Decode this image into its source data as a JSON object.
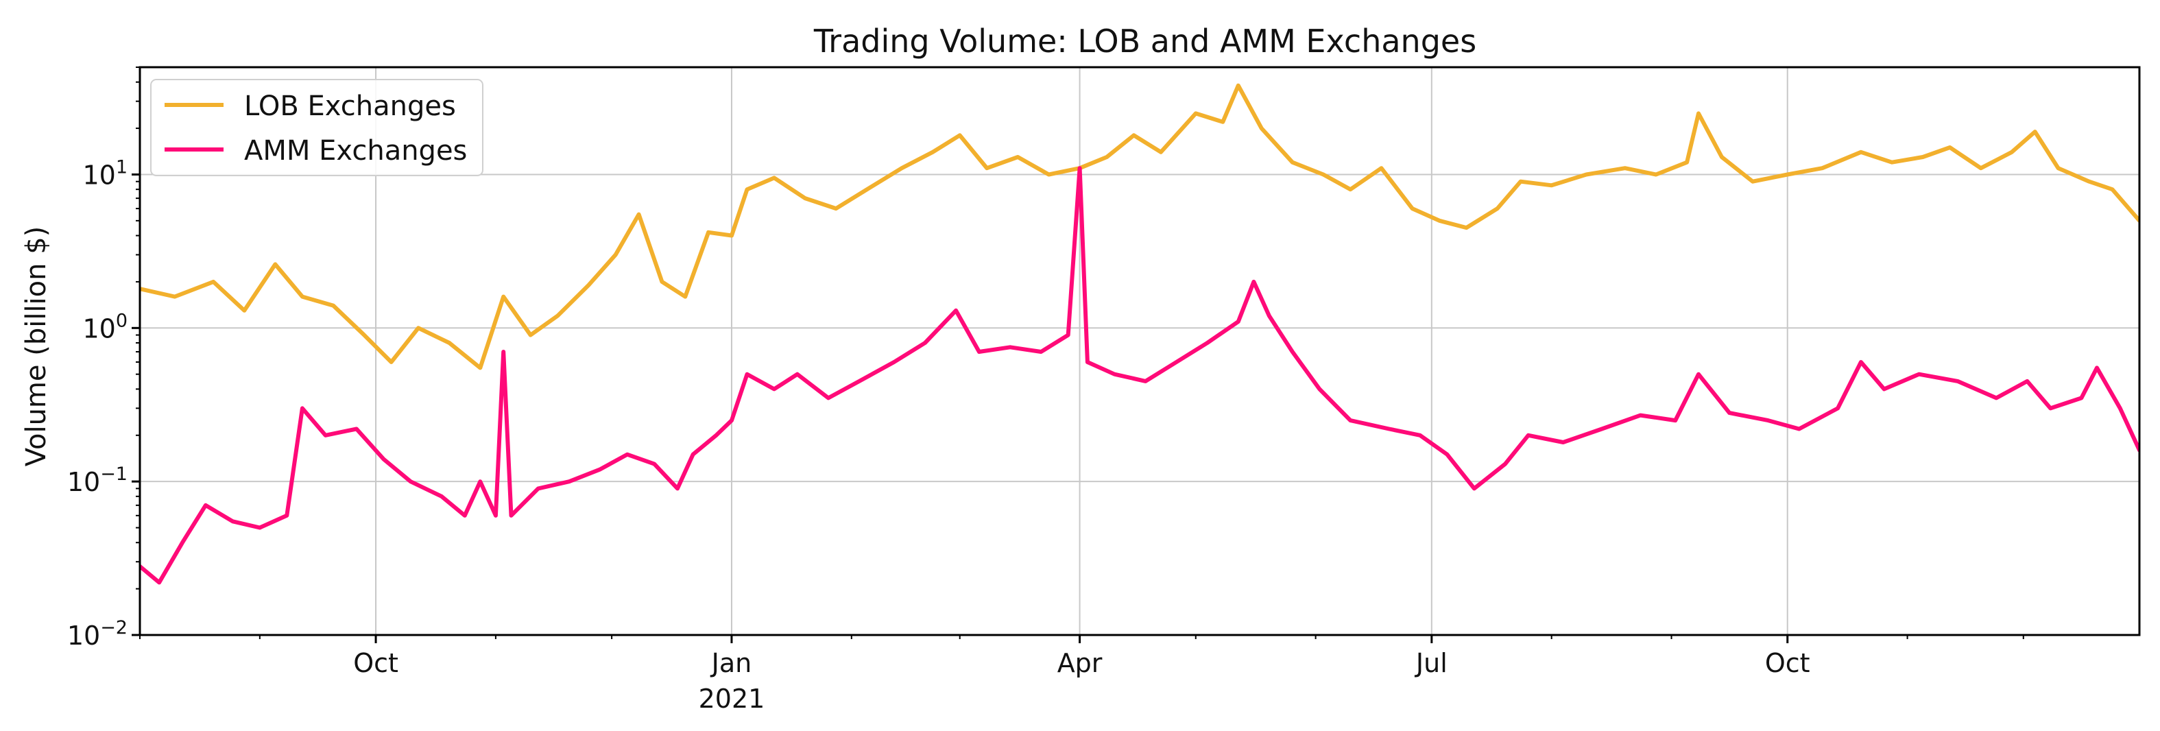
{
  "chart_data": {
    "type": "line",
    "title": "Trading Volume: LOB and AMM Exchanges",
    "xlabel": "",
    "ylabel": "Volume (billion $)",
    "yscale": "log",
    "ylim": [
      0.01,
      50
    ],
    "xlim": [
      "2020-08-01",
      "2021-12-31"
    ],
    "grid": true,
    "legend_position": "top-left",
    "x_ticks": [
      {
        "date": "2020-10-01",
        "label": "Oct",
        "sublabel": ""
      },
      {
        "date": "2021-01-01",
        "label": "Jan",
        "sublabel": "2021"
      },
      {
        "date": "2021-04-01",
        "label": "Apr",
        "sublabel": ""
      },
      {
        "date": "2021-07-01",
        "label": "Jul",
        "sublabel": ""
      },
      {
        "date": "2021-10-01",
        "label": "Oct",
        "sublabel": ""
      }
    ],
    "y_ticks": [
      {
        "value": 0.01,
        "base": "10",
        "exp": "−2"
      },
      {
        "value": 0.1,
        "base": "10",
        "exp": "−1"
      },
      {
        "value": 1,
        "base": "10",
        "exp": "0"
      },
      {
        "value": 10,
        "base": "10",
        "exp": "1"
      }
    ],
    "series": [
      {
        "name": "LOB Exchanges",
        "color": "#F2B02D",
        "points": [
          [
            "2020-08-01",
            1.8
          ],
          [
            "2020-08-10",
            1.6
          ],
          [
            "2020-08-20",
            2.0
          ],
          [
            "2020-08-28",
            1.3
          ],
          [
            "2020-09-05",
            2.6
          ],
          [
            "2020-09-12",
            1.6
          ],
          [
            "2020-09-20",
            1.4
          ],
          [
            "2020-09-28",
            0.9
          ],
          [
            "2020-10-05",
            0.6
          ],
          [
            "2020-10-12",
            1.0
          ],
          [
            "2020-10-20",
            0.8
          ],
          [
            "2020-10-28",
            0.55
          ],
          [
            "2020-11-03",
            1.6
          ],
          [
            "2020-11-10",
            0.9
          ],
          [
            "2020-11-17",
            1.2
          ],
          [
            "2020-11-25",
            1.9
          ],
          [
            "2020-12-02",
            3.0
          ],
          [
            "2020-12-08",
            5.5
          ],
          [
            "2020-12-14",
            2.0
          ],
          [
            "2020-12-20",
            1.6
          ],
          [
            "2020-12-26",
            4.2
          ],
          [
            "2021-01-01",
            4.0
          ],
          [
            "2021-01-05",
            8.0
          ],
          [
            "2021-01-12",
            9.5
          ],
          [
            "2021-01-20",
            7.0
          ],
          [
            "2021-01-28",
            6.0
          ],
          [
            "2021-02-05",
            8.0
          ],
          [
            "2021-02-14",
            11.0
          ],
          [
            "2021-02-22",
            14.0
          ],
          [
            "2021-03-01",
            18.0
          ],
          [
            "2021-03-08",
            11.0
          ],
          [
            "2021-03-16",
            13.0
          ],
          [
            "2021-03-24",
            10.0
          ],
          [
            "2021-04-01",
            11.0
          ],
          [
            "2021-04-08",
            13.0
          ],
          [
            "2021-04-15",
            18.0
          ],
          [
            "2021-04-22",
            14.0
          ],
          [
            "2021-05-01",
            25.0
          ],
          [
            "2021-05-08",
            22.0
          ],
          [
            "2021-05-12",
            38.0
          ],
          [
            "2021-05-18",
            20.0
          ],
          [
            "2021-05-26",
            12.0
          ],
          [
            "2021-06-03",
            10.0
          ],
          [
            "2021-06-10",
            8.0
          ],
          [
            "2021-06-18",
            11.0
          ],
          [
            "2021-06-26",
            6.0
          ],
          [
            "2021-07-03",
            5.0
          ],
          [
            "2021-07-10",
            4.5
          ],
          [
            "2021-07-18",
            6.0
          ],
          [
            "2021-07-24",
            9.0
          ],
          [
            "2021-08-01",
            8.5
          ],
          [
            "2021-08-10",
            10.0
          ],
          [
            "2021-08-20",
            11.0
          ],
          [
            "2021-08-28",
            10.0
          ],
          [
            "2021-09-05",
            12.0
          ],
          [
            "2021-09-08",
            25.0
          ],
          [
            "2021-09-14",
            13.0
          ],
          [
            "2021-09-22",
            9.0
          ],
          [
            "2021-10-01",
            10.0
          ],
          [
            "2021-10-10",
            11.0
          ],
          [
            "2021-10-20",
            14.0
          ],
          [
            "2021-10-28",
            12.0
          ],
          [
            "2021-11-05",
            13.0
          ],
          [
            "2021-11-12",
            15.0
          ],
          [
            "2021-11-20",
            11.0
          ],
          [
            "2021-11-28",
            14.0
          ],
          [
            "2021-12-04",
            19.0
          ],
          [
            "2021-12-10",
            11.0
          ],
          [
            "2021-12-18",
            9.0
          ],
          [
            "2021-12-24",
            8.0
          ],
          [
            "2021-12-31",
            5.0
          ]
        ]
      },
      {
        "name": "AMM Exchanges",
        "color": "#FF0A78",
        "points": [
          [
            "2020-08-01",
            0.028
          ],
          [
            "2020-08-06",
            0.022
          ],
          [
            "2020-08-12",
            0.04
          ],
          [
            "2020-08-18",
            0.07
          ],
          [
            "2020-08-25",
            0.055
          ],
          [
            "2020-09-01",
            0.05
          ],
          [
            "2020-09-08",
            0.06
          ],
          [
            "2020-09-12",
            0.3
          ],
          [
            "2020-09-18",
            0.2
          ],
          [
            "2020-09-26",
            0.22
          ],
          [
            "2020-10-03",
            0.14
          ],
          [
            "2020-10-10",
            0.1
          ],
          [
            "2020-10-18",
            0.08
          ],
          [
            "2020-10-24",
            0.06
          ],
          [
            "2020-10-28",
            0.1
          ],
          [
            "2020-11-01",
            0.06
          ],
          [
            "2020-11-03",
            0.7
          ],
          [
            "2020-11-05",
            0.06
          ],
          [
            "2020-11-12",
            0.09
          ],
          [
            "2020-11-20",
            0.1
          ],
          [
            "2020-11-28",
            0.12
          ],
          [
            "2020-12-05",
            0.15
          ],
          [
            "2020-12-12",
            0.13
          ],
          [
            "2020-12-18",
            0.09
          ],
          [
            "2020-12-22",
            0.15
          ],
          [
            "2020-12-28",
            0.2
          ],
          [
            "2021-01-01",
            0.25
          ],
          [
            "2021-01-05",
            0.5
          ],
          [
            "2021-01-12",
            0.4
          ],
          [
            "2021-01-18",
            0.5
          ],
          [
            "2021-01-26",
            0.35
          ],
          [
            "2021-02-03",
            0.45
          ],
          [
            "2021-02-12",
            0.6
          ],
          [
            "2021-02-20",
            0.8
          ],
          [
            "2021-02-28",
            1.3
          ],
          [
            "2021-03-06",
            0.7
          ],
          [
            "2021-03-14",
            0.75
          ],
          [
            "2021-03-22",
            0.7
          ],
          [
            "2021-03-29",
            0.9
          ],
          [
            "2021-04-01",
            11.0
          ],
          [
            "2021-04-03",
            0.6
          ],
          [
            "2021-04-10",
            0.5
          ],
          [
            "2021-04-18",
            0.45
          ],
          [
            "2021-04-26",
            0.6
          ],
          [
            "2021-05-04",
            0.8
          ],
          [
            "2021-05-12",
            1.1
          ],
          [
            "2021-05-16",
            2.0
          ],
          [
            "2021-05-20",
            1.2
          ],
          [
            "2021-05-26",
            0.7
          ],
          [
            "2021-06-02",
            0.4
          ],
          [
            "2021-06-10",
            0.25
          ],
          [
            "2021-06-20",
            0.22
          ],
          [
            "2021-06-28",
            0.2
          ],
          [
            "2021-07-05",
            0.15
          ],
          [
            "2021-07-12",
            0.09
          ],
          [
            "2021-07-20",
            0.13
          ],
          [
            "2021-07-26",
            0.2
          ],
          [
            "2021-08-04",
            0.18
          ],
          [
            "2021-08-14",
            0.22
          ],
          [
            "2021-08-24",
            0.27
          ],
          [
            "2021-09-02",
            0.25
          ],
          [
            "2021-09-08",
            0.5
          ],
          [
            "2021-09-16",
            0.28
          ],
          [
            "2021-09-26",
            0.25
          ],
          [
            "2021-10-04",
            0.22
          ],
          [
            "2021-10-14",
            0.3
          ],
          [
            "2021-10-20",
            0.6
          ],
          [
            "2021-10-26",
            0.4
          ],
          [
            "2021-11-04",
            0.5
          ],
          [
            "2021-11-14",
            0.45
          ],
          [
            "2021-11-24",
            0.35
          ],
          [
            "2021-12-02",
            0.45
          ],
          [
            "2021-12-08",
            0.3
          ],
          [
            "2021-12-16",
            0.35
          ],
          [
            "2021-12-20",
            0.55
          ],
          [
            "2021-12-26",
            0.3
          ],
          [
            "2021-12-31",
            0.16
          ]
        ]
      }
    ]
  }
}
